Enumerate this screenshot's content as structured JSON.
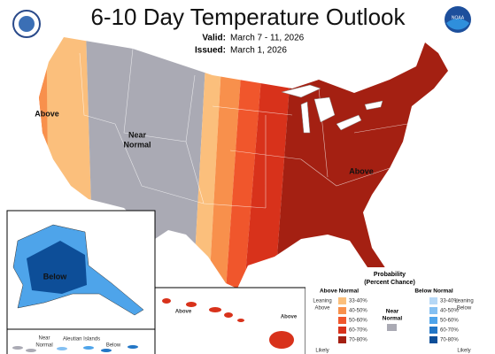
{
  "header": {
    "title": "6-10 Day Temperature Outlook",
    "valid_label": "Valid:",
    "valid": "March 7 - 11, 2026",
    "issued_label": "Issued:",
    "issued": "March 1, 2026",
    "logo_right": "NOAA"
  },
  "map": {
    "labels": {
      "west": "Above",
      "center": [
        "Near",
        "Normal"
      ],
      "east": "Above",
      "alaska": "Below",
      "aleutian_near": [
        "Near",
        "Normal"
      ],
      "aleutian_title": "Aleutian Islands",
      "aleutian_below": "Below",
      "hawaii_left": "Above",
      "hawaii_right": "Above"
    }
  },
  "legend": {
    "title": [
      "Probability",
      "(Percent Chance)"
    ],
    "above": {
      "heading": "Above Normal",
      "leaning": [
        "Leaning",
        "Above"
      ],
      "likely": "Likely",
      "bins": [
        {
          "label": "33-40%",
          "color": "#fbbf7c"
        },
        {
          "label": "40-50%",
          "color": "#f8904c"
        },
        {
          "label": "50-60%",
          "color": "#f0562c"
        },
        {
          "label": "60-70%",
          "color": "#d8321b"
        },
        {
          "label": "70-80%",
          "color": "#a42012"
        }
      ]
    },
    "near": {
      "heading": [
        "Near",
        "Normal"
      ],
      "color": "#aaaab4"
    },
    "below": {
      "heading": "Below Normal",
      "leaning": [
        "Leaning",
        "Below"
      ],
      "likely": "Likely",
      "bins": [
        {
          "label": "33-40%",
          "color": "#b6d8f6"
        },
        {
          "label": "40-50%",
          "color": "#84c0f2"
        },
        {
          "label": "50-60%",
          "color": "#4ea4ea"
        },
        {
          "label": "60-70%",
          "color": "#2276c6"
        },
        {
          "label": "70-80%",
          "color": "#0d4e98"
        }
      ]
    }
  }
}
